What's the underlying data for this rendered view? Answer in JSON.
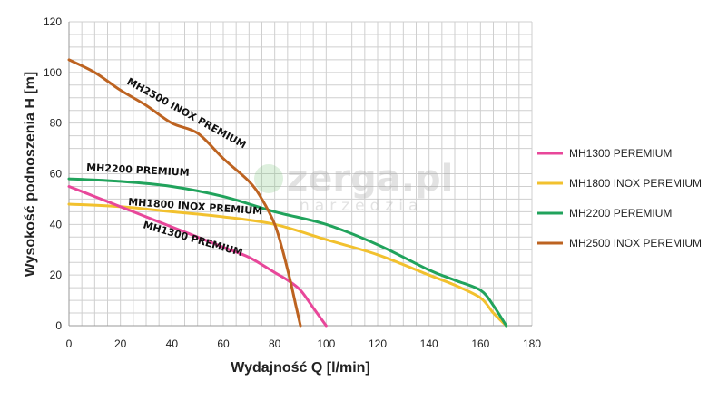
{
  "chart_data": {
    "type": "line",
    "title": "",
    "xlabel": "Wydajność Q [l/min]",
    "ylabel": "Wysokość podnoszenia H [m]",
    "xlim": [
      0,
      180
    ],
    "ylim": [
      0,
      120
    ],
    "x_ticks": [
      0,
      20,
      40,
      60,
      80,
      100,
      120,
      140,
      160,
      180
    ],
    "y_ticks": [
      0,
      20,
      40,
      60,
      80,
      100,
      120
    ],
    "grid": true,
    "legend_position": "right",
    "series": [
      {
        "name": "MH1300 PEREMIUM",
        "label": "MH1300 PREMIUM",
        "color": "#e8479a",
        "points": [
          [
            0,
            55
          ],
          [
            10,
            51
          ],
          [
            20,
            47
          ],
          [
            30,
            43
          ],
          [
            40,
            39
          ],
          [
            50,
            35
          ],
          [
            60,
            31
          ],
          [
            70,
            27
          ],
          [
            80,
            21
          ],
          [
            85,
            18
          ],
          [
            90,
            14
          ],
          [
            95,
            7
          ],
          [
            100,
            0
          ]
        ]
      },
      {
        "name": "MH1800 INOX PEREMIUM",
        "label": "MH1800 INOX PREMIUM",
        "color": "#f2c12e",
        "points": [
          [
            0,
            48
          ],
          [
            20,
            47
          ],
          [
            40,
            45
          ],
          [
            60,
            43
          ],
          [
            80,
            40
          ],
          [
            100,
            34
          ],
          [
            120,
            28
          ],
          [
            140,
            20
          ],
          [
            150,
            16
          ],
          [
            160,
            11
          ],
          [
            165,
            5
          ],
          [
            170,
            0
          ]
        ]
      },
      {
        "name": "MH2200 PEREMIUM",
        "label": "MH2200 PREMIUM",
        "color": "#21a35c",
        "points": [
          [
            0,
            58
          ],
          [
            20,
            57
          ],
          [
            40,
            55
          ],
          [
            60,
            51
          ],
          [
            80,
            45
          ],
          [
            100,
            40
          ],
          [
            120,
            32
          ],
          [
            140,
            22
          ],
          [
            150,
            18
          ],
          [
            160,
            14
          ],
          [
            165,
            8
          ],
          [
            170,
            0
          ]
        ]
      },
      {
        "name": "MH2500 INOX PEREMIUM",
        "label": "MH2500 INOX PREMIUM",
        "color": "#bd6321",
        "points": [
          [
            0,
            105
          ],
          [
            10,
            100
          ],
          [
            20,
            93
          ],
          [
            30,
            87
          ],
          [
            40,
            80
          ],
          [
            50,
            76
          ],
          [
            60,
            66
          ],
          [
            70,
            57
          ],
          [
            75,
            50
          ],
          [
            80,
            40
          ],
          [
            83,
            30
          ],
          [
            86,
            18
          ],
          [
            88,
            9
          ],
          [
            90,
            0
          ]
        ]
      }
    ]
  },
  "watermark": {
    "brand": "zerga.pl",
    "sub": "narzedzia"
  }
}
